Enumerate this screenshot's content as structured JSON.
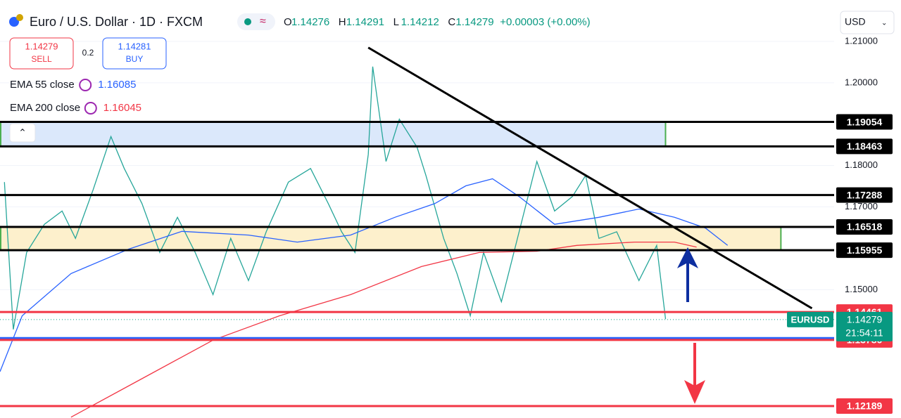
{
  "header": {
    "title": "Euro / U.S. Dollar · 1D · FXCM",
    "ohlc": [
      {
        "key": "O",
        "value": "1.14276"
      },
      {
        "key": "H",
        "value": "1.14291"
      },
      {
        "key": "L",
        "value": "1.14212"
      },
      {
        "key": "C",
        "value": "1.14279"
      }
    ],
    "change": "+0.00003 (+0.00%)",
    "sell_price": "1.14279",
    "sell_label": "SELL",
    "spread": "0.2",
    "buy_price": "1.14281",
    "buy_label": "BUY",
    "currency": "USD"
  },
  "chart_data": {
    "type": "line",
    "xlim": [
      0,
      188
    ],
    "ylim": [
      1.119,
      1.22
    ],
    "yticks": [
      {
        "value": 1.21,
        "label": "1.21000"
      },
      {
        "value": 1.2,
        "label": "1.20000"
      },
      {
        "value": 1.18,
        "label": "1.18000"
      },
      {
        "value": 1.17,
        "label": "1.17000"
      },
      {
        "value": 1.15,
        "label": "1.15000"
      }
    ],
    "grid": true,
    "series": [
      {
        "color": "#26a69a",
        "x": [
          1,
          3,
          6,
          10,
          14,
          17,
          21,
          25,
          28,
          32,
          36,
          40,
          44,
          48,
          52,
          56,
          60,
          65,
          70,
          74,
          77,
          80,
          83,
          84,
          87,
          90,
          94,
          96,
          100,
          103,
          106,
          109,
          113,
          117,
          121,
          125,
          129,
          132,
          135,
          139,
          144,
          148,
          150
        ],
        "values": [
          1.176,
          1.1404,
          1.159,
          1.1658,
          1.169,
          1.1624,
          1.1742,
          1.187,
          1.1793,
          1.1708,
          1.159,
          1.1675,
          1.159,
          1.1488,
          1.1624,
          1.1522,
          1.164,
          1.176,
          1.1793,
          1.1708,
          1.164,
          1.159,
          1.1827,
          1.2039,
          1.181,
          1.1912,
          1.1844,
          1.1776,
          1.1624,
          1.1539,
          1.1437,
          1.159,
          1.1471,
          1.164,
          1.181,
          1.169,
          1.1725,
          1.1776,
          1.1624,
          1.164,
          1.1522,
          1.1607,
          1.1429
        ]
      },
      {
        "name": "EMA 55 close",
        "legend_value": "1.16085",
        "color": "#2962ff",
        "x": [
          0,
          5,
          16,
          29,
          41,
          56,
          67,
          79,
          89,
          98,
          105,
          111,
          117,
          125,
          135,
          144,
          152,
          159,
          164
        ],
        "values": [
          1.1302,
          1.1437,
          1.1539,
          1.1598,
          1.1641,
          1.1632,
          1.1615,
          1.1632,
          1.1675,
          1.1708,
          1.1751,
          1.1768,
          1.1725,
          1.1658,
          1.1675,
          1.1695,
          1.1675,
          1.1649,
          1.1607
        ]
      },
      {
        "name": "EMA 200 close",
        "legend_value": "1.16045",
        "color": "#f23645",
        "x": [
          16,
          32,
          48,
          63,
          79,
          95,
          108,
          121,
          130,
          143,
          152,
          157
        ],
        "values": [
          1.1192,
          1.1285,
          1.1378,
          1.1437,
          1.1488,
          1.1556,
          1.159,
          1.1593,
          1.1607,
          1.1615,
          1.1615,
          1.1603
        ]
      }
    ],
    "zones": [
      {
        "from": 1.18463,
        "to": 1.19054,
        "x_end": 150,
        "color": "#dbe8fb"
      },
      {
        "from": 1.15955,
        "to": 1.16518,
        "x_end": 176,
        "color": "#fdf0cc"
      }
    ],
    "trendline": {
      "x": [
        83,
        183
      ],
      "values": [
        1.2085,
        1.1455
      ]
    },
    "levels": [
      {
        "value": 1.19054,
        "color": "#000000"
      },
      {
        "value": 1.18463,
        "color": "#000000"
      },
      {
        "value": 1.17288,
        "color": "#000000"
      },
      {
        "value": 1.16518,
        "color": "#000000"
      },
      {
        "value": 1.15955,
        "color": "#000000"
      },
      {
        "value": 1.14461,
        "color": "#f23645"
      },
      {
        "value": {
          "value": 1.1383,
          "label": "1.13830"
        },
        "color": "#2962ff"
      },
      {
        "value": 1.13786,
        "color": "#f23645"
      },
      {
        "value": 1.12189,
        "color": "#f23645"
      }
    ],
    "last_price": 1.14279,
    "last_symbol": "EURUSD",
    "countdown": "21:54:11",
    "last_color": "#089981"
  }
}
